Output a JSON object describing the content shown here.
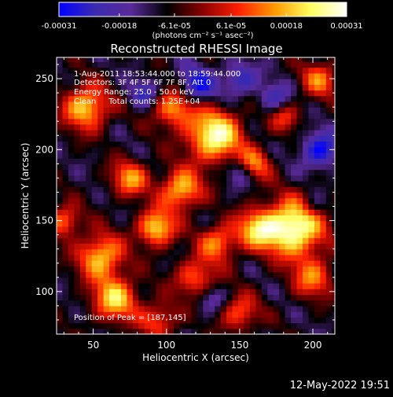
{
  "chart_data": {
    "type": "heatmap",
    "title": "Reconstructed RHESSI Image",
    "xlabel": "Heliocentric X (arcsec)",
    "ylabel": "Heliocentric Y (arcsec)",
    "xlim": [
      25,
      215
    ],
    "ylim": [
      70,
      265
    ],
    "xticks": [
      50,
      100,
      150,
      200
    ],
    "yticks": [
      100,
      150,
      200,
      250
    ],
    "colorbar": {
      "min": -0.00031,
      "max": 0.00031,
      "tick_values": [
        -0.00031,
        -0.00018,
        -6.1e-05,
        6.1e-05,
        0.00018,
        0.00031
      ],
      "tick_labels": [
        "-0.00031",
        "-0.00018",
        "-6.1e-05",
        "6.1e-05",
        "0.00018",
        "0.00031"
      ],
      "unit_label": "(photons cm⁻² s⁻¹ asec⁻²)",
      "colors": [
        "#0000ff",
        "#3b2bb0",
        "#5a2a9a",
        "#000000",
        "#8b0000",
        "#ff2000",
        "#ff9a00",
        "#ffff60",
        "#ffffff"
      ]
    },
    "annotations": [
      "1-Aug-2011 18:53:44.000 to 18:59:44.000",
      "Detectors: 3F 4F 5F 6F 7F 8F, Att 0",
      "Energy Range: 25.0 - 50.0 keV",
      "Clean     Total counts: 1.25E+04"
    ],
    "peak_label": "Position of Peak = [187,145]",
    "peak": [
      187,
      145
    ],
    "background_level": -9e-05,
    "sources": [
      {
        "x": 187,
        "y": 145,
        "value": 0.00031,
        "radius": 14
      },
      {
        "x": 133,
        "y": 210,
        "value": 0.00028,
        "radius": 13
      },
      {
        "x": 162,
        "y": 144,
        "value": 0.00017,
        "radius": 10
      },
      {
        "x": 110,
        "y": 172,
        "value": 0.0002,
        "radius": 10
      },
      {
        "x": 93,
        "y": 145,
        "value": 0.00022,
        "radius": 9
      },
      {
        "x": 45,
        "y": 230,
        "value": 0.00021,
        "radius": 11
      },
      {
        "x": 55,
        "y": 125,
        "value": 0.0002,
        "radius": 11
      },
      {
        "x": 65,
        "y": 95,
        "value": 0.0002,
        "radius": 11
      },
      {
        "x": 105,
        "y": 230,
        "value": 0.00016,
        "radius": 10
      },
      {
        "x": 75,
        "y": 180,
        "value": 0.00015,
        "radius": 9
      },
      {
        "x": 135,
        "y": 135,
        "value": 0.00014,
        "radius": 9
      },
      {
        "x": 160,
        "y": 190,
        "value": 0.00013,
        "radius": 8
      },
      {
        "x": 205,
        "y": 250,
        "value": 0.00012,
        "radius": 9
      },
      {
        "x": 30,
        "y": 150,
        "value": 0.00013,
        "radius": 8
      },
      {
        "x": 120,
        "y": 110,
        "value": 0.00012,
        "radius": 10
      },
      {
        "x": 200,
        "y": 110,
        "value": 0.00012,
        "radius": 10
      },
      {
        "x": 180,
        "y": 225,
        "value": 0.0001,
        "radius": 8
      },
      {
        "x": 150,
        "y": 85,
        "value": 0.00011,
        "radius": 9
      },
      {
        "x": 95,
        "y": 80,
        "value": 0.0001,
        "radius": 9
      }
    ],
    "sinks": [
      {
        "x": 120,
        "y": 245,
        "value": -0.0003,
        "radius": 9
      },
      {
        "x": 205,
        "y": 200,
        "value": -0.0003,
        "radius": 9
      },
      {
        "x": 175,
        "y": 235,
        "value": -0.00026,
        "radius": 8
      },
      {
        "x": 150,
        "y": 250,
        "value": -0.00026,
        "radius": 8
      },
      {
        "x": 85,
        "y": 240,
        "value": -0.00024,
        "radius": 7
      },
      {
        "x": 150,
        "y": 185,
        "value": -0.00022,
        "radius": 7
      },
      {
        "x": 130,
        "y": 95,
        "value": -0.0002,
        "radius": 7
      },
      {
        "x": 200,
        "y": 160,
        "value": -0.00018,
        "radius": 6
      }
    ]
  },
  "footer": {
    "timestamp": "12-May-2022 19:51"
  }
}
